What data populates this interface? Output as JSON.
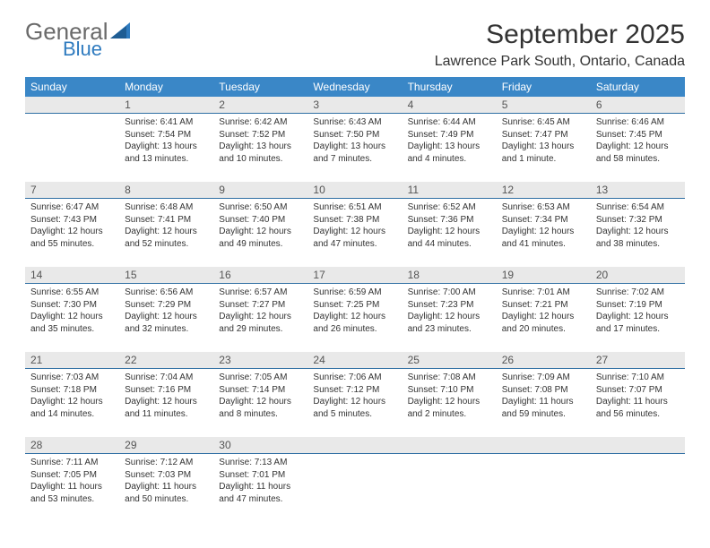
{
  "logo": {
    "general": "General",
    "blue": "Blue"
  },
  "title": "September 2025",
  "location": "Lawrence Park South, Ontario, Canada",
  "colors": {
    "header_bg": "#3a87c7",
    "daynum_bg": "#e9e9e9",
    "daynum_border": "#2f6fa3",
    "logo_gray": "#6a6a6a",
    "logo_blue": "#2f7bbf"
  },
  "day_names": [
    "Sunday",
    "Monday",
    "Tuesday",
    "Wednesday",
    "Thursday",
    "Friday",
    "Saturday"
  ],
  "weeks": [
    {
      "nums": [
        "",
        "1",
        "2",
        "3",
        "4",
        "5",
        "6"
      ],
      "cells": [
        [],
        [
          "Sunrise: 6:41 AM",
          "Sunset: 7:54 PM",
          "Daylight: 13 hours",
          "and 13 minutes."
        ],
        [
          "Sunrise: 6:42 AM",
          "Sunset: 7:52 PM",
          "Daylight: 13 hours",
          "and 10 minutes."
        ],
        [
          "Sunrise: 6:43 AM",
          "Sunset: 7:50 PM",
          "Daylight: 13 hours",
          "and 7 minutes."
        ],
        [
          "Sunrise: 6:44 AM",
          "Sunset: 7:49 PM",
          "Daylight: 13 hours",
          "and 4 minutes."
        ],
        [
          "Sunrise: 6:45 AM",
          "Sunset: 7:47 PM",
          "Daylight: 13 hours",
          "and 1 minute."
        ],
        [
          "Sunrise: 6:46 AM",
          "Sunset: 7:45 PM",
          "Daylight: 12 hours",
          "and 58 minutes."
        ]
      ]
    },
    {
      "nums": [
        "7",
        "8",
        "9",
        "10",
        "11",
        "12",
        "13"
      ],
      "cells": [
        [
          "Sunrise: 6:47 AM",
          "Sunset: 7:43 PM",
          "Daylight: 12 hours",
          "and 55 minutes."
        ],
        [
          "Sunrise: 6:48 AM",
          "Sunset: 7:41 PM",
          "Daylight: 12 hours",
          "and 52 minutes."
        ],
        [
          "Sunrise: 6:50 AM",
          "Sunset: 7:40 PM",
          "Daylight: 12 hours",
          "and 49 minutes."
        ],
        [
          "Sunrise: 6:51 AM",
          "Sunset: 7:38 PM",
          "Daylight: 12 hours",
          "and 47 minutes."
        ],
        [
          "Sunrise: 6:52 AM",
          "Sunset: 7:36 PM",
          "Daylight: 12 hours",
          "and 44 minutes."
        ],
        [
          "Sunrise: 6:53 AM",
          "Sunset: 7:34 PM",
          "Daylight: 12 hours",
          "and 41 minutes."
        ],
        [
          "Sunrise: 6:54 AM",
          "Sunset: 7:32 PM",
          "Daylight: 12 hours",
          "and 38 minutes."
        ]
      ]
    },
    {
      "nums": [
        "14",
        "15",
        "16",
        "17",
        "18",
        "19",
        "20"
      ],
      "cells": [
        [
          "Sunrise: 6:55 AM",
          "Sunset: 7:30 PM",
          "Daylight: 12 hours",
          "and 35 minutes."
        ],
        [
          "Sunrise: 6:56 AM",
          "Sunset: 7:29 PM",
          "Daylight: 12 hours",
          "and 32 minutes."
        ],
        [
          "Sunrise: 6:57 AM",
          "Sunset: 7:27 PM",
          "Daylight: 12 hours",
          "and 29 minutes."
        ],
        [
          "Sunrise: 6:59 AM",
          "Sunset: 7:25 PM",
          "Daylight: 12 hours",
          "and 26 minutes."
        ],
        [
          "Sunrise: 7:00 AM",
          "Sunset: 7:23 PM",
          "Daylight: 12 hours",
          "and 23 minutes."
        ],
        [
          "Sunrise: 7:01 AM",
          "Sunset: 7:21 PM",
          "Daylight: 12 hours",
          "and 20 minutes."
        ],
        [
          "Sunrise: 7:02 AM",
          "Sunset: 7:19 PM",
          "Daylight: 12 hours",
          "and 17 minutes."
        ]
      ]
    },
    {
      "nums": [
        "21",
        "22",
        "23",
        "24",
        "25",
        "26",
        "27"
      ],
      "cells": [
        [
          "Sunrise: 7:03 AM",
          "Sunset: 7:18 PM",
          "Daylight: 12 hours",
          "and 14 minutes."
        ],
        [
          "Sunrise: 7:04 AM",
          "Sunset: 7:16 PM",
          "Daylight: 12 hours",
          "and 11 minutes."
        ],
        [
          "Sunrise: 7:05 AM",
          "Sunset: 7:14 PM",
          "Daylight: 12 hours",
          "and 8 minutes."
        ],
        [
          "Sunrise: 7:06 AM",
          "Sunset: 7:12 PM",
          "Daylight: 12 hours",
          "and 5 minutes."
        ],
        [
          "Sunrise: 7:08 AM",
          "Sunset: 7:10 PM",
          "Daylight: 12 hours",
          "and 2 minutes."
        ],
        [
          "Sunrise: 7:09 AM",
          "Sunset: 7:08 PM",
          "Daylight: 11 hours",
          "and 59 minutes."
        ],
        [
          "Sunrise: 7:10 AM",
          "Sunset: 7:07 PM",
          "Daylight: 11 hours",
          "and 56 minutes."
        ]
      ]
    },
    {
      "nums": [
        "28",
        "29",
        "30",
        "",
        "",
        "",
        ""
      ],
      "cells": [
        [
          "Sunrise: 7:11 AM",
          "Sunset: 7:05 PM",
          "Daylight: 11 hours",
          "and 53 minutes."
        ],
        [
          "Sunrise: 7:12 AM",
          "Sunset: 7:03 PM",
          "Daylight: 11 hours",
          "and 50 minutes."
        ],
        [
          "Sunrise: 7:13 AM",
          "Sunset: 7:01 PM",
          "Daylight: 11 hours",
          "and 47 minutes."
        ],
        [],
        [],
        [],
        []
      ]
    }
  ]
}
